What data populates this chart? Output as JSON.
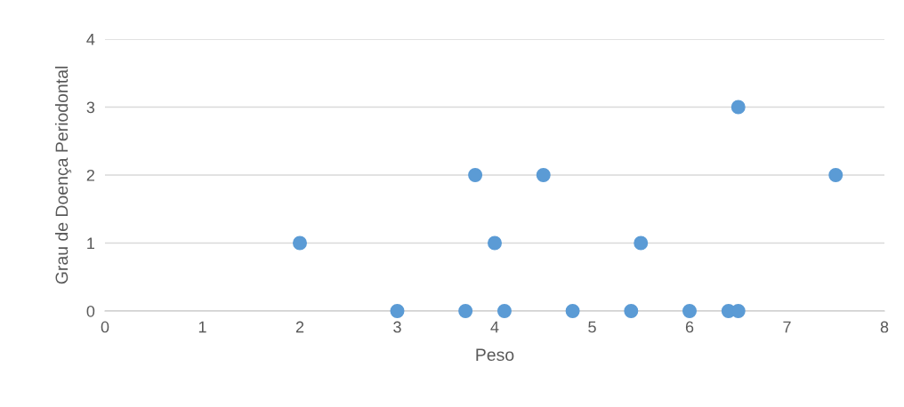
{
  "chart_data": {
    "type": "scatter",
    "xlabel": "Peso",
    "ylabel": "Grau de Doença Periodontal",
    "x": [
      2,
      3,
      3.7,
      3.8,
      4,
      4.1,
      4.5,
      4.8,
      5.4,
      5.5,
      6,
      6.4,
      6.5,
      6.5,
      7.5
    ],
    "values": [
      1,
      0,
      0,
      2,
      1,
      0,
      2,
      0,
      0,
      1,
      0,
      0,
      0,
      3,
      2
    ],
    "color": "#5b9bd5",
    "marker": "circle",
    "xlim": [
      0,
      8
    ],
    "xticks": [
      0,
      1,
      2,
      3,
      4,
      5,
      6,
      7,
      8
    ],
    "ylim": [
      0,
      4
    ],
    "yticks": [
      0,
      1,
      2,
      3,
      4
    ],
    "grid": "y"
  }
}
